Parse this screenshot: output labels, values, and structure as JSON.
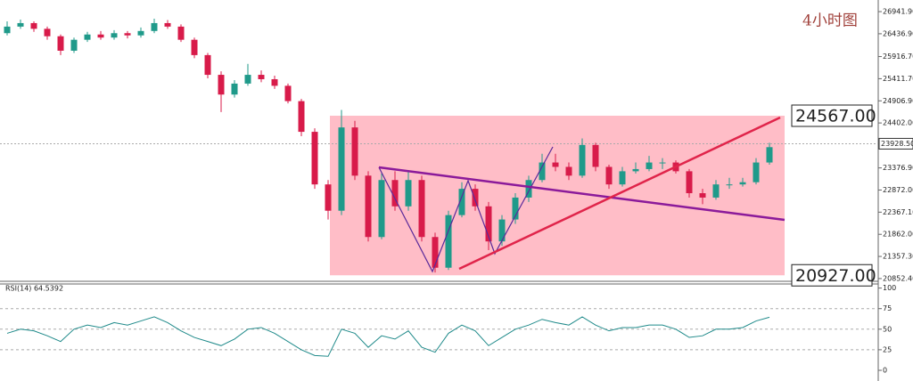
{
  "chart_data": [
    {
      "type": "candlestick",
      "title": "4小时图",
      "ohlc": [
        [
          26450,
          26720,
          26400,
          26600
        ],
        [
          26600,
          26760,
          26550,
          26680
        ],
        [
          26680,
          26720,
          26480,
          26550
        ],
        [
          26550,
          26600,
          26300,
          26380
        ],
        [
          26380,
          26420,
          25950,
          26050
        ],
        [
          26050,
          26350,
          26000,
          26300
        ],
        [
          26300,
          26480,
          26250,
          26420
        ],
        [
          26420,
          26500,
          26300,
          26350
        ],
        [
          26350,
          26520,
          26300,
          26450
        ],
        [
          26450,
          26500,
          26330,
          26400
        ],
        [
          26400,
          26580,
          26350,
          26500
        ],
        [
          26500,
          26780,
          26450,
          26680
        ],
        [
          26680,
          26750,
          26550,
          26600
        ],
        [
          26600,
          26650,
          26250,
          26300
        ],
        [
          26300,
          26350,
          25880,
          25950
        ],
        [
          25950,
          26000,
          25420,
          25500
        ],
        [
          25500,
          25580,
          24650,
          25050
        ],
        [
          25050,
          25380,
          24980,
          25300
        ],
        [
          25300,
          25750,
          25250,
          25500
        ],
        [
          25500,
          25600,
          25330,
          25400
        ],
        [
          25400,
          25480,
          25180,
          25250
        ],
        [
          25250,
          25300,
          24850,
          24900
        ],
        [
          24900,
          24950,
          24100,
          24200
        ],
        [
          24200,
          24280,
          22900,
          23000
        ],
        [
          23000,
          23100,
          22200,
          22400
        ],
        [
          22400,
          24700,
          22300,
          24300
        ],
        [
          24300,
          24450,
          23100,
          23200
        ],
        [
          23200,
          23300,
          21700,
          21800
        ],
        [
          21800,
          23250,
          21750,
          23100
        ],
        [
          23100,
          23300,
          22400,
          22500
        ],
        [
          22500,
          23300,
          22400,
          23100
        ],
        [
          23100,
          23200,
          21700,
          21800
        ],
        [
          21800,
          21900,
          20990,
          21100
        ],
        [
          21100,
          22400,
          21050,
          22300
        ],
        [
          22300,
          23050,
          22250,
          22900
        ],
        [
          22900,
          23000,
          22400,
          22500
        ],
        [
          22500,
          22600,
          21500,
          21700
        ],
        [
          21700,
          22300,
          21600,
          22200
        ],
        [
          22200,
          22800,
          22100,
          22700
        ],
        [
          22700,
          23200,
          22600,
          23100
        ],
        [
          23100,
          23700,
          23050,
          23500
        ],
        [
          23500,
          23700,
          23300,
          23400
        ],
        [
          23400,
          23500,
          23100,
          23200
        ],
        [
          23200,
          24050,
          23150,
          23900
        ],
        [
          23900,
          23950,
          23300,
          23400
        ],
        [
          23400,
          23450,
          22900,
          23000
        ],
        [
          23000,
          23400,
          22950,
          23300
        ],
        [
          23300,
          23500,
          23250,
          23350
        ],
        [
          23350,
          23650,
          23300,
          23500
        ],
        [
          23500,
          23600,
          23350,
          23500
        ],
        [
          23500,
          23550,
          23250,
          23300
        ],
        [
          23300,
          23350,
          22700,
          22800
        ],
        [
          22800,
          22900,
          22550,
          22700
        ],
        [
          22700,
          23100,
          22650,
          23000
        ],
        [
          23000,
          23150,
          22900,
          23000
        ],
        [
          23000,
          23150,
          22950,
          23050
        ],
        [
          23050,
          23600,
          23000,
          23500
        ],
        [
          23500,
          23950,
          23450,
          23850
        ]
      ],
      "up_color": "#1f9a8a",
      "down_color": "#d81b4a",
      "ylim": [
        20790,
        27207
      ],
      "yticks": [
        {
          "value": 26941.9,
          "label": "26941.90"
        },
        {
          "value": 26436.9,
          "label": "26436.90"
        },
        {
          "value": 25916.7,
          "label": "25916.70"
        },
        {
          "value": 25411.7,
          "label": "25411.70"
        },
        {
          "value": 24906.9,
          "label": "24906.90"
        },
        {
          "value": 24402,
          "label": "24402.00"
        },
        {
          "value": 23376.9,
          "label": "23376.90"
        },
        {
          "value": 22872,
          "label": "22872.00"
        },
        {
          "value": 22367.1,
          "label": "22367.10"
        },
        {
          "value": 21862,
          "label": "21862.00"
        },
        {
          "value": 21357.3,
          "label": "21357.30"
        },
        {
          "value": 20852.4,
          "label": "20852.40"
        }
      ],
      "last_price": {
        "value": 23928.5,
        "label": "23928.50"
      },
      "levels": [
        {
          "value": 24567,
          "label": "24567.00"
        },
        {
          "value": 20927,
          "label": "20927.00"
        }
      ]
    },
    {
      "type": "line",
      "label": "RSI(14) 64.5392",
      "color": "#1f8a8a",
      "values": [
        45,
        50,
        48,
        42,
        35,
        50,
        55,
        52,
        58,
        55,
        60,
        65,
        58,
        48,
        40,
        35,
        30,
        38,
        50,
        52,
        45,
        35,
        25,
        18,
        17,
        50,
        45,
        28,
        42,
        38,
        48,
        28,
        22,
        45,
        55,
        48,
        30,
        40,
        50,
        55,
        62,
        58,
        55,
        65,
        55,
        48,
        52,
        52,
        55,
        55,
        50,
        40,
        42,
        50,
        50,
        52,
        60,
        64.5392
      ],
      "ylim": [
        -13,
        105
      ],
      "yticks": [
        100,
        75,
        50,
        25,
        0
      ],
      "levels": [
        75,
        50,
        25
      ]
    }
  ]
}
